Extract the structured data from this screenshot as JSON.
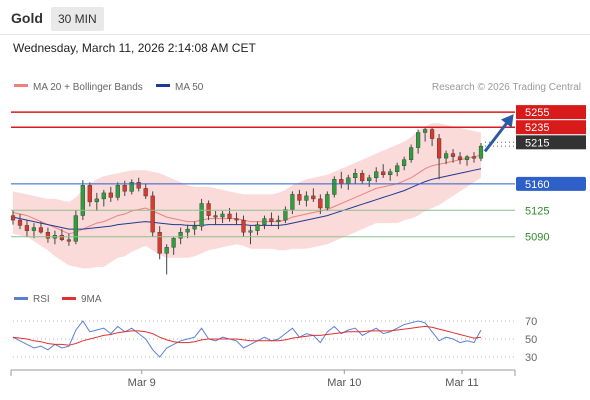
{
  "header": {
    "instrument": "Gold",
    "timeframe": "30 MIN",
    "datetime": "Wednesday, March 11, 2026 2:14:08 AM CET"
  },
  "legend": {
    "ma20_label": "MA 20 + Bollinger Bands",
    "ma50_label": "MA 50",
    "credit": "Research © 2026 Trading Central",
    "rsi_label": "RSI",
    "rsi_ma_label": "9MA"
  },
  "colors": {
    "candle_up": "#2e9e3e",
    "candle_down": "#d93a2b",
    "wick": "#444444",
    "bollinger_fill": "#fad3d3",
    "ma20": "#f08080",
    "ma50": "#1f3a93",
    "resistance": "#d91a1a",
    "support": "#2f5fc9",
    "target": "#8cc08c",
    "pivot": "#333333",
    "arrow": "#2a5ba8",
    "rsi": "#5b7fd6",
    "rsi_ma": "#e03030"
  },
  "levels": [
    {
      "value": 5255,
      "label": "5255",
      "style": "resistance"
    },
    {
      "value": 5235,
      "label": "5235",
      "style": "resistance"
    },
    {
      "value": 5215,
      "label": "5215",
      "style": "pivot"
    },
    {
      "value": 5160,
      "label": "5160",
      "style": "support"
    },
    {
      "value": 5125,
      "label": "5125",
      "style": "target"
    },
    {
      "value": 5090,
      "label": "5090",
      "style": "target"
    }
  ],
  "chart_data": [
    {
      "type": "candlestick",
      "x_ticks": [
        "Mar 9",
        "Mar 10",
        "Mar 11"
      ],
      "ylim": [
        5030,
        5275
      ],
      "ohlc": [
        [
          5118,
          5125,
          5106,
          5112
        ],
        [
          5112,
          5120,
          5100,
          5105
        ],
        [
          5105,
          5112,
          5090,
          5098
        ],
        [
          5098,
          5108,
          5088,
          5102
        ],
        [
          5102,
          5110,
          5094,
          5096
        ],
        [
          5096,
          5102,
          5082,
          5088
        ],
        [
          5088,
          5098,
          5080,
          5092
        ],
        [
          5092,
          5100,
          5084,
          5086
        ],
        [
          5086,
          5094,
          5078,
          5084
        ],
        [
          5084,
          5125,
          5080,
          5118
        ],
        [
          5118,
          5165,
          5112,
          5158
        ],
        [
          5158,
          5162,
          5130,
          5136
        ],
        [
          5136,
          5148,
          5124,
          5140
        ],
        [
          5140,
          5152,
          5130,
          5148
        ],
        [
          5148,
          5156,
          5136,
          5142
        ],
        [
          5142,
          5162,
          5138,
          5158
        ],
        [
          5158,
          5164,
          5144,
          5150
        ],
        [
          5150,
          5166,
          5146,
          5162
        ],
        [
          5162,
          5168,
          5150,
          5154
        ],
        [
          5154,
          5160,
          5140,
          5144
        ],
        [
          5144,
          5150,
          5090,
          5096
        ],
        [
          5096,
          5104,
          5060,
          5068
        ],
        [
          5068,
          5080,
          5040,
          5076
        ],
        [
          5076,
          5090,
          5066,
          5088
        ],
        [
          5088,
          5102,
          5080,
          5096
        ],
        [
          5096,
          5106,
          5088,
          5100
        ],
        [
          5100,
          5110,
          5092,
          5104
        ],
        [
          5104,
          5140,
          5098,
          5134
        ],
        [
          5134,
          5138,
          5112,
          5118
        ],
        [
          5118,
          5124,
          5106,
          5116
        ],
        [
          5116,
          5124,
          5108,
          5120
        ],
        [
          5120,
          5128,
          5110,
          5114
        ],
        [
          5114,
          5122,
          5106,
          5112
        ],
        [
          5112,
          5118,
          5090,
          5096
        ],
        [
          5096,
          5104,
          5080,
          5098
        ],
        [
          5098,
          5110,
          5092,
          5106
        ],
        [
          5106,
          5118,
          5100,
          5114
        ],
        [
          5114,
          5122,
          5104,
          5110
        ],
        [
          5110,
          5118,
          5100,
          5112
        ],
        [
          5112,
          5130,
          5108,
          5126
        ],
        [
          5126,
          5150,
          5120,
          5146
        ],
        [
          5146,
          5152,
          5132,
          5138
        ],
        [
          5138,
          5150,
          5130,
          5144
        ],
        [
          5144,
          5154,
          5136,
          5140
        ],
        [
          5140,
          5146,
          5120,
          5128
        ],
        [
          5128,
          5150,
          5124,
          5146
        ],
        [
          5146,
          5170,
          5142,
          5166
        ],
        [
          5166,
          5176,
          5154,
          5160
        ],
        [
          5160,
          5172,
          5152,
          5168
        ],
        [
          5168,
          5180,
          5160,
          5174
        ],
        [
          5174,
          5178,
          5160,
          5164
        ],
        [
          5164,
          5172,
          5156,
          5168
        ],
        [
          5168,
          5182,
          5162,
          5176
        ],
        [
          5176,
          5186,
          5168,
          5172
        ],
        [
          5172,
          5180,
          5164,
          5176
        ],
        [
          5176,
          5188,
          5170,
          5184
        ],
        [
          5184,
          5196,
          5178,
          5192
        ],
        [
          5192,
          5212,
          5188,
          5208
        ],
        [
          5208,
          5232,
          5200,
          5228
        ],
        [
          5228,
          5236,
          5216,
          5232
        ],
        [
          5232,
          5234,
          5210,
          5220
        ],
        [
          5220,
          5226,
          5166,
          5194
        ],
        [
          5194,
          5204,
          5186,
          5200
        ],
        [
          5200,
          5206,
          5188,
          5196
        ],
        [
          5196,
          5202,
          5186,
          5192
        ],
        [
          5192,
          5198,
          5184,
          5196
        ],
        [
          5196,
          5202,
          5188,
          5194
        ],
        [
          5194,
          5214,
          5190,
          5210
        ]
      ],
      "ma20": [
        5122,
        5120,
        5118,
        5114,
        5110,
        5106,
        5102,
        5098,
        5094,
        5096,
        5100,
        5104,
        5108,
        5110,
        5114,
        5118,
        5120,
        5124,
        5126,
        5128,
        5124,
        5120,
        5116,
        5114,
        5112,
        5110,
        5110,
        5112,
        5114,
        5114,
        5114,
        5114,
        5114,
        5112,
        5110,
        5110,
        5110,
        5110,
        5110,
        5112,
        5116,
        5118,
        5120,
        5122,
        5124,
        5126,
        5130,
        5134,
        5138,
        5142,
        5146,
        5150,
        5154,
        5156,
        5158,
        5160,
        5164,
        5168,
        5174,
        5180,
        5184,
        5186,
        5188,
        5190,
        5192,
        5194,
        5196,
        5198
      ],
      "bollinger_upper": [
        5150,
        5148,
        5146,
        5144,
        5142,
        5140,
        5140,
        5138,
        5136,
        5142,
        5152,
        5160,
        5166,
        5170,
        5172,
        5174,
        5176,
        5178,
        5178,
        5178,
        5176,
        5174,
        5170,
        5166,
        5162,
        5158,
        5156,
        5156,
        5156,
        5154,
        5152,
        5150,
        5148,
        5146,
        5146,
        5146,
        5146,
        5146,
        5148,
        5152,
        5158,
        5162,
        5166,
        5168,
        5170,
        5172,
        5176,
        5180,
        5184,
        5188,
        5192,
        5196,
        5200,
        5204,
        5208,
        5212,
        5216,
        5222,
        5230,
        5236,
        5240,
        5240,
        5238,
        5236,
        5234,
        5232,
        5230,
        5228
      ],
      "bollinger_lower": [
        5094,
        5092,
        5090,
        5084,
        5078,
        5072,
        5064,
        5058,
        5052,
        5050,
        5048,
        5048,
        5050,
        5050,
        5056,
        5062,
        5064,
        5070,
        5074,
        5078,
        5072,
        5066,
        5062,
        5062,
        5062,
        5062,
        5064,
        5068,
        5072,
        5074,
        5076,
        5078,
        5080,
        5078,
        5074,
        5074,
        5074,
        5074,
        5072,
        5072,
        5074,
        5074,
        5074,
        5076,
        5078,
        5080,
        5084,
        5088,
        5092,
        5096,
        5100,
        5104,
        5108,
        5108,
        5108,
        5108,
        5112,
        5114,
        5118,
        5124,
        5128,
        5132,
        5138,
        5144,
        5150,
        5156,
        5162,
        5168
      ],
      "ma50": [
        5116,
        5114,
        5112,
        5110,
        5108,
        5106,
        5104,
        5102,
        5100,
        5100,
        5100,
        5101,
        5102,
        5103,
        5104,
        5106,
        5107,
        5108,
        5109,
        5110,
        5109,
        5108,
        5107,
        5106,
        5106,
        5105,
        5105,
        5105,
        5106,
        5106,
        5106,
        5106,
        5106,
        5106,
        5105,
        5105,
        5105,
        5105,
        5105,
        5106,
        5108,
        5110,
        5112,
        5114,
        5116,
        5118,
        5121,
        5124,
        5127,
        5130,
        5133,
        5136,
        5139,
        5142,
        5145,
        5148,
        5151,
        5155,
        5159,
        5163,
        5166,
        5168,
        5170,
        5172,
        5174,
        5176,
        5178,
        5180
      ]
    },
    {
      "type": "line",
      "name_series": [
        "RSI",
        "9MA"
      ],
      "ylim": [
        20,
        80
      ],
      "y_ticks": [
        70,
        50,
        30
      ],
      "rsi": [
        52,
        48,
        44,
        40,
        42,
        38,
        44,
        40,
        42,
        60,
        70,
        58,
        60,
        62,
        56,
        64,
        58,
        62,
        56,
        50,
        38,
        30,
        40,
        44,
        48,
        50,
        52,
        62,
        50,
        48,
        52,
        50,
        48,
        40,
        44,
        48,
        52,
        48,
        50,
        56,
        62,
        52,
        56,
        54,
        46,
        58,
        64,
        56,
        60,
        62,
        54,
        58,
        62,
        56,
        58,
        62,
        66,
        68,
        70,
        68,
        58,
        48,
        52,
        50,
        46,
        48,
        46,
        60
      ],
      "rsi_ma": [
        52,
        51,
        50,
        48,
        47,
        45,
        44,
        44,
        43,
        45,
        48,
        50,
        52,
        54,
        55,
        57,
        58,
        59,
        59,
        58,
        56,
        52,
        49,
        47,
        46,
        46,
        47,
        49,
        50,
        50,
        50,
        50,
        50,
        49,
        48,
        48,
        48,
        48,
        48,
        49,
        51,
        52,
        53,
        54,
        54,
        55,
        56,
        57,
        58,
        58,
        58,
        59,
        59,
        59,
        59,
        60,
        61,
        62,
        63,
        64,
        63,
        61,
        59,
        57,
        55,
        53,
        51,
        52
      ]
    }
  ]
}
